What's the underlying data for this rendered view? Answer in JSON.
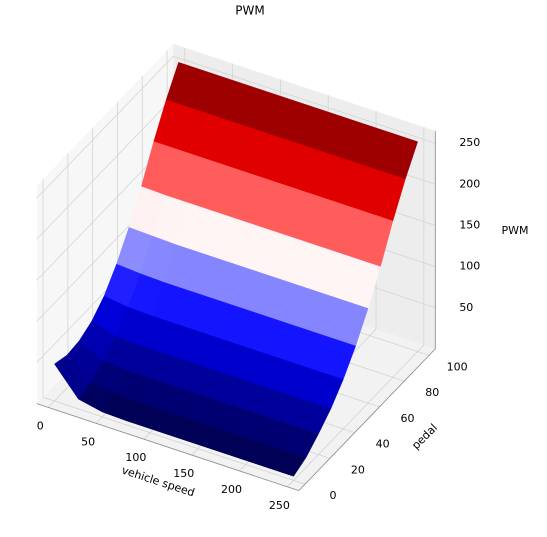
{
  "chart_data": {
    "type": "surface",
    "title": "PWM",
    "x_label": "vehicle speed",
    "y_label": "pedal",
    "z_label": "PWM",
    "x": [
      0,
      25,
      50,
      75,
      100,
      125,
      150,
      175,
      200,
      225,
      250
    ],
    "y": [
      0,
      10,
      20,
      30,
      40,
      50,
      60,
      70,
      80,
      90,
      100
    ],
    "z": [
      [
        45,
        40,
        42,
        50,
        65,
        88,
        117,
        151,
        190,
        225,
        255
      ],
      [
        12,
        16,
        27,
        41,
        61,
        86,
        116,
        150,
        190,
        225,
        255
      ],
      [
        6,
        12,
        25,
        40,
        60,
        85,
        115,
        150,
        190,
        225,
        255
      ],
      [
        5,
        12,
        25,
        40,
        60,
        85,
        115,
        150,
        190,
        225,
        255
      ],
      [
        5,
        12,
        25,
        40,
        60,
        85,
        115,
        150,
        190,
        225,
        255
      ],
      [
        5,
        12,
        25,
        40,
        60,
        85,
        115,
        150,
        190,
        225,
        255
      ],
      [
        5,
        12,
        25,
        40,
        60,
        85,
        115,
        150,
        190,
        225,
        255
      ],
      [
        5,
        12,
        25,
        40,
        60,
        85,
        115,
        150,
        190,
        225,
        255
      ],
      [
        5,
        12,
        25,
        40,
        60,
        85,
        115,
        150,
        190,
        225,
        255
      ],
      [
        5,
        12,
        25,
        40,
        60,
        85,
        115,
        150,
        190,
        225,
        255
      ],
      [
        5,
        12,
        25,
        40,
        60,
        85,
        115,
        150,
        190,
        225,
        255
      ]
    ],
    "colormap": "seismic",
    "xlim": [
      -12,
      262
    ],
    "ylim": [
      -5,
      105
    ],
    "zlim": [
      0,
      265
    ],
    "xticks": [
      0,
      50,
      100,
      150,
      200,
      250
    ],
    "yticks": [
      0,
      20,
      40,
      60,
      80,
      100
    ],
    "zticks": [
      50,
      100,
      150,
      200,
      250
    ],
    "grid": true
  }
}
